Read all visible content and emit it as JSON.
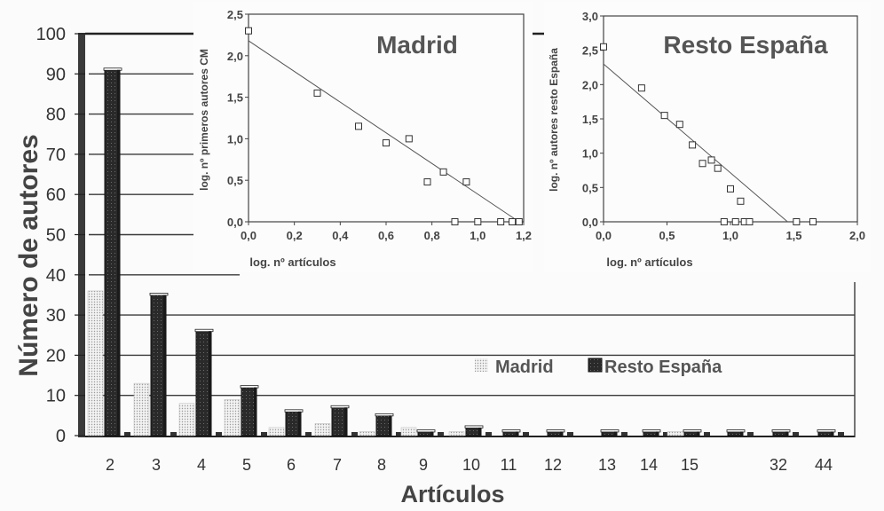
{
  "chart_data": [
    {
      "type": "bar",
      "xlabel": "Artículos",
      "ylabel": "Número de autores",
      "ylim": [
        0,
        100
      ],
      "yticks": [
        "0",
        "10",
        "20",
        "30",
        "40",
        "50",
        "60",
        "70",
        "80",
        "90",
        "100"
      ],
      "categories": [
        "2",
        "3",
        "4",
        "5",
        "6",
        "7",
        "8",
        "9",
        "10",
        "11",
        "12",
        "13",
        "14",
        "15",
        "",
        "32",
        "44"
      ],
      "series": [
        {
          "name": "Madrid",
          "color": "#dcdcdc",
          "pattern": "dotted",
          "values": [
            36,
            13,
            8,
            9,
            2,
            3,
            1,
            2,
            1,
            0,
            0,
            0,
            0,
            1,
            0,
            0,
            0
          ]
        },
        {
          "name": "Resto España",
          "color": "#2b2b2b",
          "pattern": "dark",
          "values": [
            91,
            35,
            26,
            12,
            6,
            7,
            5,
            1,
            2,
            1,
            1,
            1,
            1,
            1,
            1,
            1,
            1
          ]
        }
      ],
      "legend": "center-right",
      "grid": "horizontal"
    },
    {
      "type": "scatter",
      "title": "Madrid",
      "xlabel": "log. nº artículos",
      "ylabel": "log. nº primeros autores CM",
      "xlim": [
        0,
        1.2
      ],
      "ylim": [
        0,
        2.5
      ],
      "xticks": [
        "0,0",
        "0,2",
        "0,4",
        "0,6",
        "0,8",
        "1,0",
        "1,2"
      ],
      "yticks": [
        "0,0",
        "0,5",
        "1,0",
        "1,5",
        "2,0",
        "2,5"
      ],
      "points": [
        [
          0.0,
          2.3
        ],
        [
          0.3,
          1.55
        ],
        [
          0.48,
          1.15
        ],
        [
          0.6,
          0.95
        ],
        [
          0.7,
          1.0
        ],
        [
          0.78,
          0.48
        ],
        [
          0.85,
          0.6
        ],
        [
          0.9,
          0.0
        ],
        [
          0.95,
          0.48
        ],
        [
          1.0,
          0.0
        ],
        [
          1.1,
          0.0
        ],
        [
          1.15,
          0.0
        ],
        [
          1.18,
          0.0
        ]
      ],
      "fit_line": [
        [
          0.0,
          2.18
        ],
        [
          1.18,
          0.0
        ]
      ]
    },
    {
      "type": "scatter",
      "title": "Resto España",
      "xlabel": "log. nº artículos",
      "ylabel": "log. nº autores resto España",
      "xlim": [
        0,
        2.0
      ],
      "ylim": [
        0,
        3.0
      ],
      "xticks": [
        "0,0",
        "0,5",
        "1,0",
        "1,5",
        "2,0"
      ],
      "yticks": [
        "0,0",
        "0,5",
        "1,0",
        "1,5",
        "2,0",
        "2,5",
        "3,0"
      ],
      "points": [
        [
          0.0,
          2.55
        ],
        [
          0.3,
          1.95
        ],
        [
          0.48,
          1.55
        ],
        [
          0.6,
          1.42
        ],
        [
          0.7,
          1.12
        ],
        [
          0.78,
          0.85
        ],
        [
          0.85,
          0.9
        ],
        [
          0.9,
          0.78
        ],
        [
          0.95,
          0.0
        ],
        [
          1.0,
          0.48
        ],
        [
          1.04,
          0.0
        ],
        [
          1.08,
          0.3
        ],
        [
          1.11,
          0.0
        ],
        [
          1.15,
          0.0
        ],
        [
          1.52,
          0.0
        ],
        [
          1.65,
          0.0
        ]
      ],
      "fit_line": [
        [
          0.0,
          2.3
        ],
        [
          1.45,
          0.0
        ]
      ]
    }
  ]
}
